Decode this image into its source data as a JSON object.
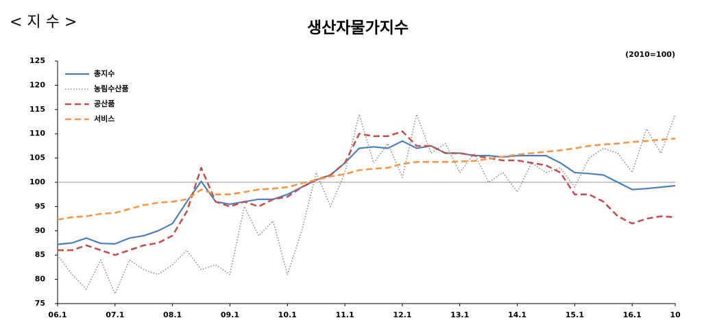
{
  "header": "< 지 수 >",
  "chart_data": {
    "type": "line",
    "title": "생산자물가지수",
    "annotation": "(2010=100)",
    "categories": [
      "06.1",
      null,
      null,
      null,
      "07.1",
      null,
      null,
      null,
      "08.1",
      null,
      null,
      null,
      "09.1",
      null,
      null,
      null,
      "10.1",
      null,
      null,
      null,
      "11.1",
      null,
      null,
      null,
      "12.1",
      null,
      null,
      null,
      "13.1",
      null,
      null,
      null,
      "14.1",
      null,
      null,
      null,
      "15.1",
      null,
      null,
      null,
      "16.1",
      null,
      null,
      "10"
    ],
    "ylim": [
      75,
      125
    ],
    "yticks": [
      75,
      80,
      85,
      90,
      95,
      100,
      105,
      110,
      115,
      120,
      125
    ],
    "reference_line": 100,
    "legend": "upper-left",
    "series": [
      {
        "name": "총지수",
        "color": "#4a7ebb",
        "style": "solid",
        "values": [
          87.2,
          87.5,
          88.5,
          87.4,
          87.3,
          88.5,
          89,
          90,
          91.5,
          96,
          100.2,
          96,
          95.5,
          96,
          96.5,
          96.5,
          97.5,
          99,
          100.5,
          101.5,
          104,
          107,
          107.3,
          107,
          108.5,
          107,
          107.5,
          106,
          106,
          105.5,
          105.5,
          105.2,
          105.5,
          105.5,
          105.5,
          104,
          102,
          101.8,
          101.5,
          100,
          98.5,
          98.7,
          99,
          99.3
        ]
      },
      {
        "name": "농림수산품",
        "color": "#8c8c8c",
        "style": "dotted",
        "values": [
          85,
          81,
          78,
          84,
          77,
          84,
          82,
          81,
          83,
          86,
          82,
          83,
          81,
          95,
          89,
          92,
          81,
          90,
          102,
          95,
          102,
          114,
          104,
          108,
          101,
          114,
          106,
          108,
          102,
          106,
          100,
          102,
          98,
          104,
          102,
          103,
          99,
          105,
          107,
          106,
          102,
          111,
          106,
          114
        ]
      },
      {
        "name": "공산품",
        "color": "#c0504d",
        "style": "dashed",
        "values": [
          86,
          86,
          87,
          86,
          85,
          86,
          87,
          87.5,
          89,
          94,
          103,
          96,
          95,
          96,
          95,
          96.5,
          97,
          99,
          100.5,
          101.5,
          104,
          110,
          109.5,
          109.5,
          110.5,
          107.5,
          107.5,
          106,
          106,
          105.5,
          105,
          104.5,
          104.5,
          104,
          103.5,
          102,
          97.5,
          97.5,
          96,
          93,
          91.5,
          92.5,
          93,
          92.8
        ]
      },
      {
        "name": "서비스",
        "color": "#f79646",
        "style": "dashed",
        "values": [
          92.3,
          92.8,
          93,
          93.5,
          93.7,
          94.5,
          95.3,
          95.8,
          96,
          96.5,
          98.5,
          97.5,
          97.5,
          98,
          98.5,
          98.7,
          99,
          99.8,
          100.5,
          101.2,
          101.7,
          102.5,
          102.8,
          103,
          103.8,
          104.2,
          104.2,
          104.2,
          104.3,
          104.4,
          104.8,
          105.3,
          105.7,
          106,
          106.3,
          106.6,
          107,
          107.5,
          107.8,
          108,
          108.3,
          108.5,
          108.8,
          109
        ]
      }
    ]
  }
}
